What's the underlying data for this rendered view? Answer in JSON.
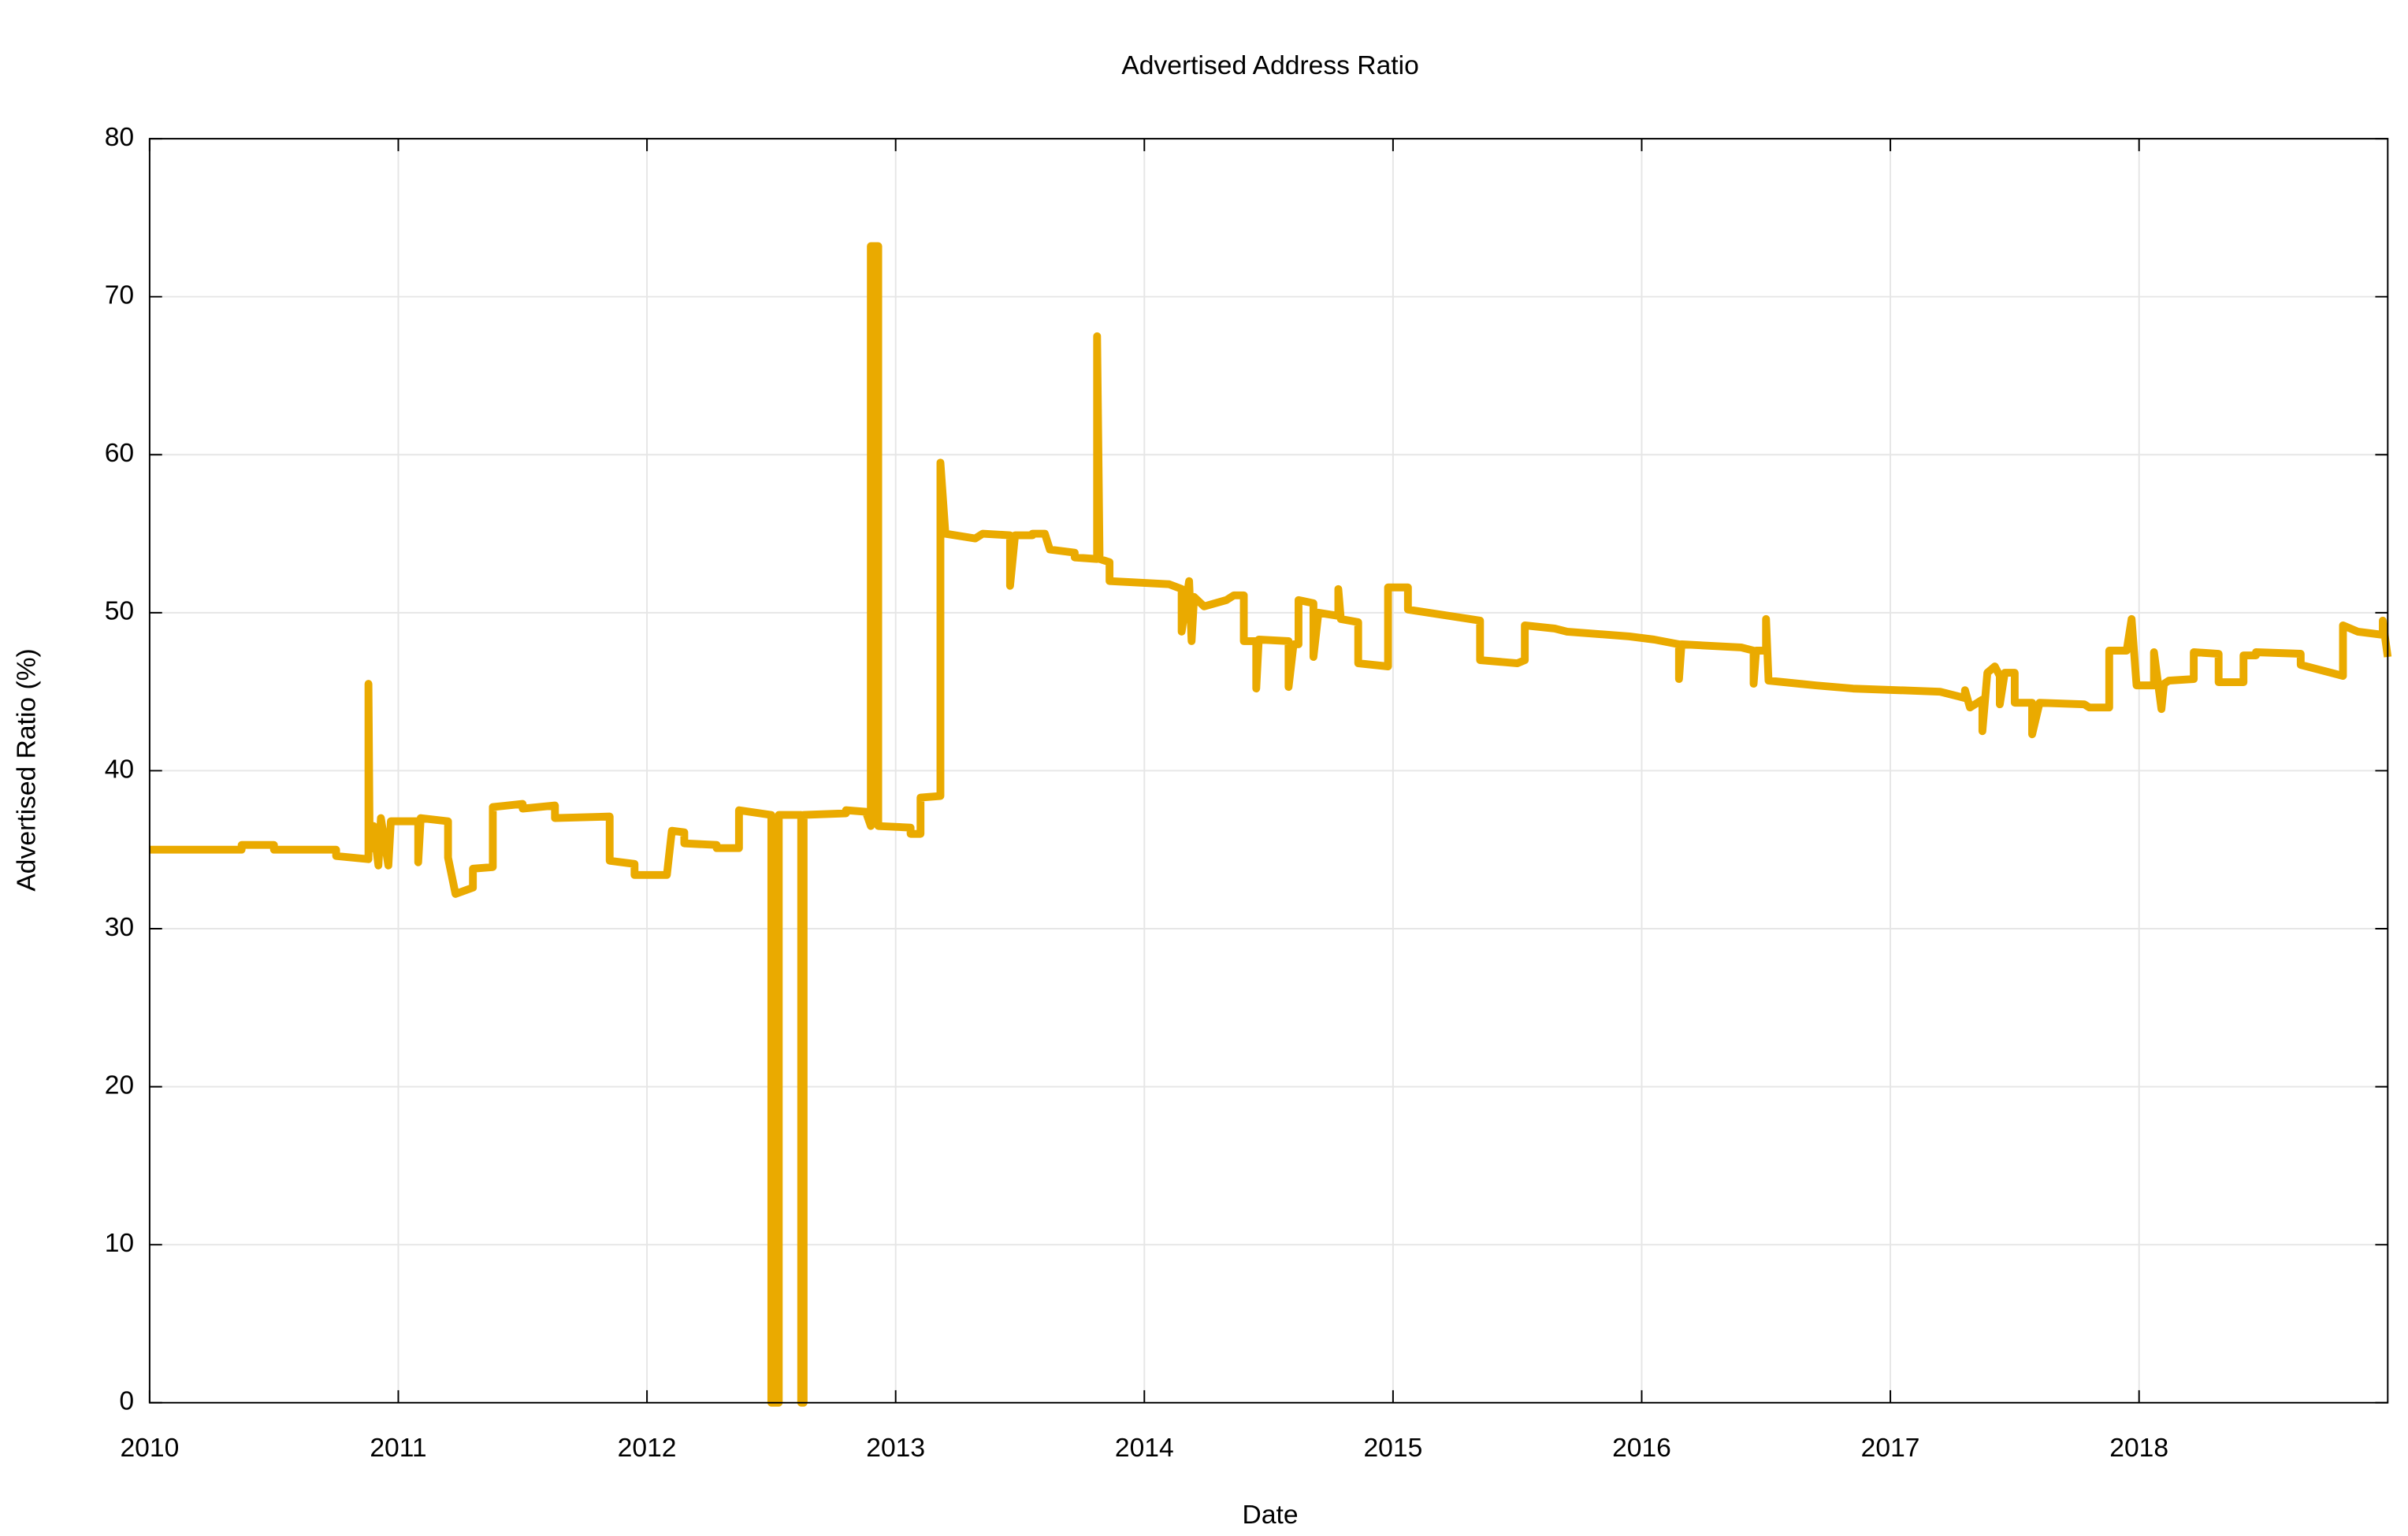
{
  "chart_data": {
    "type": "line",
    "title": "Advertised Address Ratio",
    "x_label": "Date",
    "y_label": "Advertised Ratio (%)",
    "xlim": [
      2010,
      2019
    ],
    "xticks": [
      2010,
      2011,
      2012,
      2013,
      2014,
      2015,
      2016,
      2017,
      2018
    ],
    "ylim": [
      0,
      80
    ],
    "yticks": [
      0,
      10,
      20,
      30,
      40,
      50,
      60,
      70,
      80
    ],
    "grid": true,
    "series": [
      {
        "color": "#eaaa00",
        "x": [
          2010.0,
          2010.37,
          2010.37,
          2010.5,
          2010.5,
          2010.75,
          2010.75,
          2010.88,
          2010.88,
          2010.885,
          2010.9,
          2010.92,
          2010.93,
          2010.96,
          2010.97,
          2011.08,
          2011.08,
          2011.09,
          2011.2,
          2011.2,
          2011.23,
          2011.3,
          2011.3,
          2011.38,
          2011.38,
          2011.5,
          2011.5,
          2011.63,
          2011.63,
          2011.85,
          2011.85,
          2011.95,
          2011.95,
          2012.08,
          2012.1,
          2012.15,
          2012.15,
          2012.28,
          2012.28,
          2012.37,
          2012.37,
          2012.5,
          2012.5,
          2012.53,
          2012.53,
          2012.62,
          2012.62,
          2012.63,
          2012.63,
          2012.8,
          2012.8,
          2012.88,
          2012.9,
          2012.9,
          2012.93,
          2012.93,
          2013.06,
          2013.06,
          2013.1,
          2013.1,
          2013.18,
          2013.18,
          2013.2,
          2013.32,
          2013.35,
          2013.46,
          2013.46,
          2013.48,
          2013.55,
          2013.55,
          2013.6,
          2013.62,
          2013.72,
          2013.72,
          2013.81,
          2013.81,
          2013.82,
          2013.86,
          2013.86,
          2014.1,
          2014.15,
          2014.15,
          2014.18,
          2014.19,
          2014.2,
          2014.24,
          2014.33,
          2014.36,
          2014.4,
          2014.4,
          2014.45,
          2014.45,
          2014.46,
          2014.58,
          2014.58,
          2014.6,
          2014.62,
          2014.62,
          2014.68,
          2014.68,
          2014.7,
          2014.78,
          2014.78,
          2014.79,
          2014.86,
          2014.86,
          2014.98,
          2014.98,
          2015.06,
          2015.06,
          2015.35,
          2015.35,
          2015.5,
          2015.53,
          2015.53,
          2015.65,
          2015.7,
          2015.95,
          2016.05,
          2016.15,
          2016.15,
          2016.16,
          2016.4,
          2016.45,
          2016.45,
          2016.46,
          2016.5,
          2016.5,
          2016.51,
          2016.7,
          2016.85,
          2017.2,
          2017.3,
          2017.3,
          2017.32,
          2017.37,
          2017.37,
          2017.39,
          2017.42,
          2017.44,
          2017.44,
          2017.46,
          2017.5,
          2017.5,
          2017.57,
          2017.57,
          2017.6,
          2017.78,
          2017.8,
          2017.88,
          2017.88,
          2017.95,
          2017.97,
          2017.99,
          2018.06,
          2018.06,
          2018.09,
          2018.1,
          2018.12,
          2018.22,
          2018.22,
          2018.32,
          2018.32,
          2018.42,
          2018.42,
          2018.47,
          2018.47,
          2018.65,
          2018.65,
          2018.82,
          2018.82,
          2018.88,
          2018.98,
          2018.98,
          2019.0
        ],
        "values": [
          35.0,
          35.0,
          35.3,
          35.3,
          35.0,
          35.0,
          34.6,
          34.4,
          45.5,
          35.0,
          36.5,
          34.0,
          37.0,
          34.0,
          36.8,
          36.8,
          34.2,
          37.0,
          36.8,
          34.5,
          32.2,
          32.6,
          33.8,
          33.9,
          37.7,
          37.9,
          37.6,
          37.8,
          37.0,
          37.1,
          34.3,
          34.1,
          33.4,
          33.4,
          36.2,
          36.1,
          35.4,
          35.3,
          35.1,
          35.1,
          37.5,
          37.2,
          0,
          0,
          37.2,
          37.2,
          0,
          0,
          37.2,
          37.3,
          37.5,
          37.4,
          36.5,
          73.2,
          73.2,
          36.5,
          36.4,
          36.0,
          36.0,
          38.3,
          38.4,
          59.5,
          55.0,
          54.7,
          55.0,
          54.9,
          51.7,
          54.9,
          54.9,
          55.0,
          55.0,
          54.0,
          53.8,
          53.5,
          53.4,
          67.5,
          53.4,
          53.2,
          52.0,
          51.8,
          51.5,
          48.8,
          52.0,
          48.2,
          51.0,
          50.4,
          50.8,
          51.1,
          51.1,
          48.2,
          48.2,
          45.2,
          48.3,
          48.2,
          45.3,
          48.0,
          48.0,
          50.8,
          50.6,
          47.2,
          50.0,
          49.8,
          51.5,
          49.6,
          49.4,
          46.8,
          46.6,
          51.6,
          51.6,
          50.2,
          49.5,
          47.0,
          46.8,
          47.0,
          49.2,
          49.0,
          48.8,
          48.5,
          48.3,
          48.0,
          45.8,
          48.0,
          47.8,
          47.6,
          45.5,
          47.6,
          47.6,
          49.6,
          45.7,
          45.4,
          45.2,
          45.0,
          44.6,
          45.1,
          44.0,
          44.5,
          42.5,
          46.2,
          46.6,
          46.0,
          44.2,
          46.2,
          46.2,
          44.3,
          44.3,
          42.3,
          44.3,
          44.2,
          44.0,
          44.0,
          47.6,
          47.6,
          49.6,
          45.4,
          45.4,
          47.5,
          43.9,
          45.5,
          45.7,
          45.8,
          47.5,
          47.4,
          45.6,
          45.6,
          47.3,
          47.3,
          47.5,
          47.4,
          46.7,
          46.0,
          49.2,
          48.8,
          48.6,
          49.5,
          47.2
        ]
      }
    ]
  }
}
